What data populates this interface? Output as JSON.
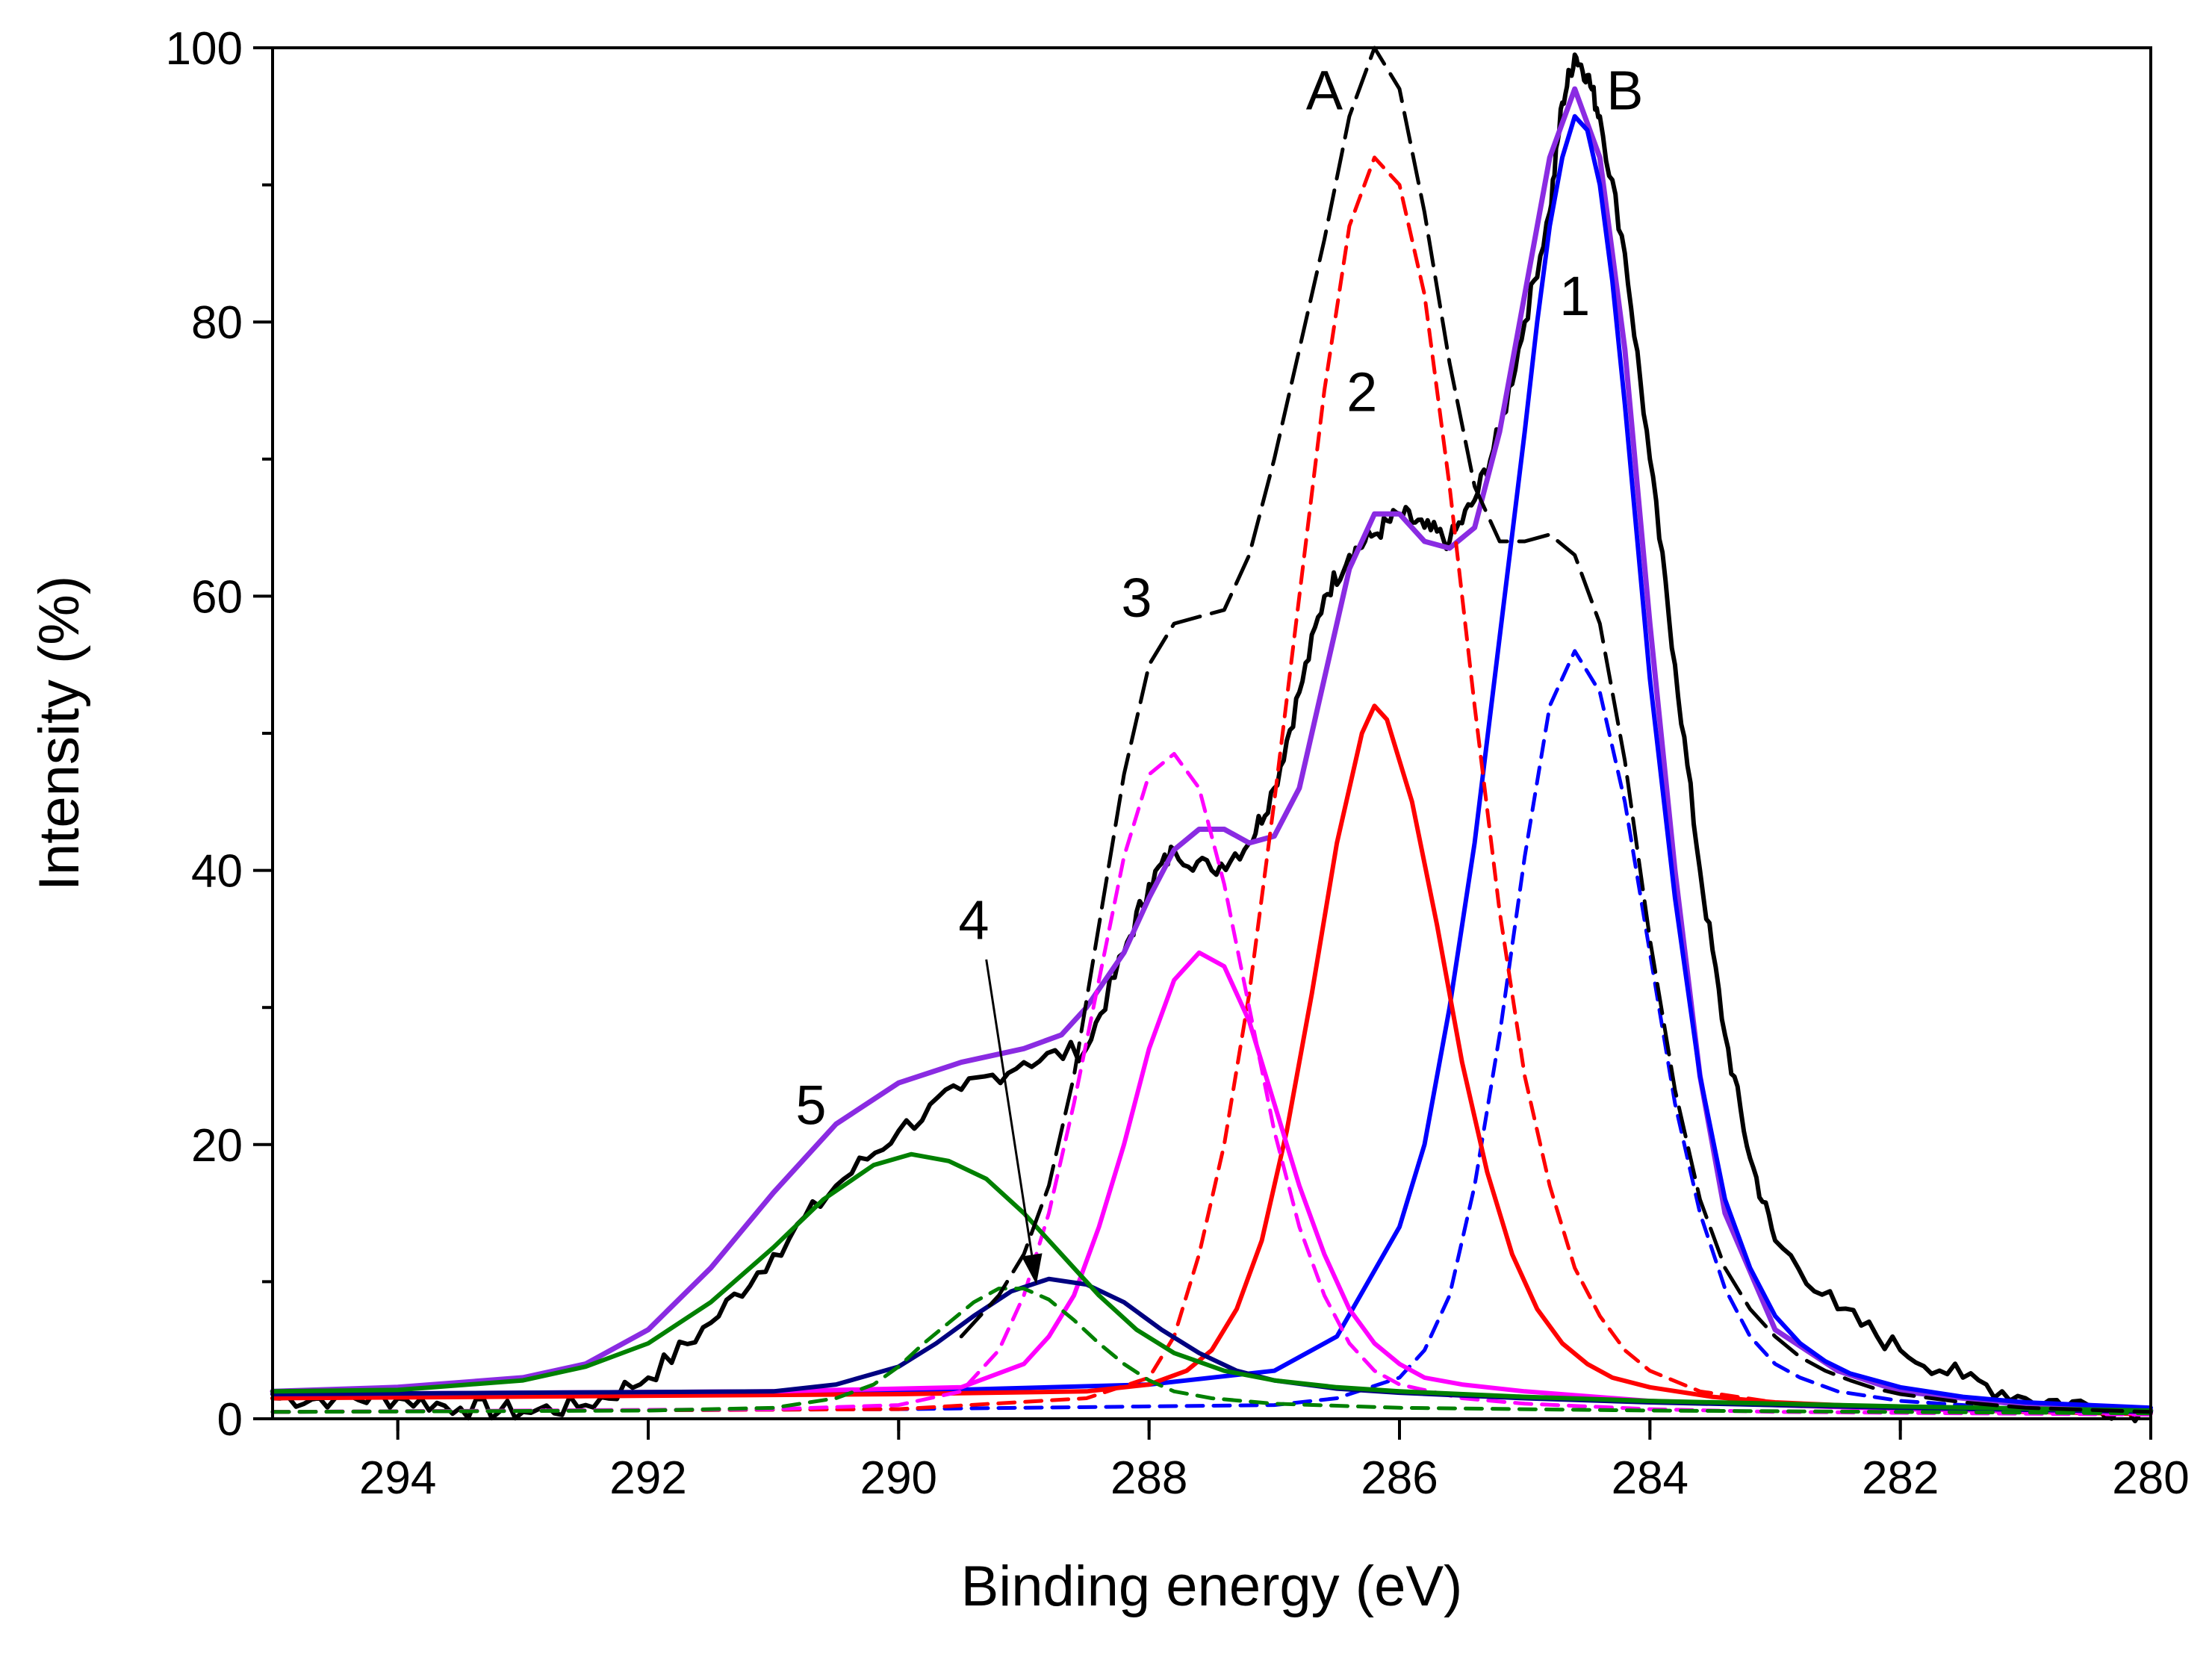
{
  "chart_data": {
    "type": "line",
    "title": "",
    "xlabel": "Binding energy (eV)",
    "ylabel": "Intensity (%)",
    "xlim": [
      295,
      280
    ],
    "ylim": [
      0,
      100
    ],
    "x_reversed": true,
    "grid": false,
    "legend": "none",
    "x_ticks": [
      294,
      292,
      290,
      288,
      286,
      284,
      282,
      280
    ],
    "x_tick_labels": [
      "294",
      "292",
      "290",
      "288",
      "286",
      "284",
      "282",
      "280"
    ],
    "y_ticks": [
      0,
      20,
      40,
      60,
      80,
      100
    ],
    "y_tick_labels": [
      "0",
      "20",
      "40",
      "60",
      "80",
      "100"
    ],
    "annotations": [
      {
        "text": "A",
        "x": 286.6,
        "y": 95.5
      },
      {
        "text": "B",
        "x": 284.2,
        "y": 95.5
      },
      {
        "text": "1",
        "x": 284.6,
        "y": 80.5
      },
      {
        "text": "2",
        "x": 286.3,
        "y": 73.5
      },
      {
        "text": "3",
        "x": 288.1,
        "y": 58.5
      },
      {
        "text": "4",
        "x": 289.4,
        "y": 35.0
      },
      {
        "text": "5",
        "x": 290.7,
        "y": 21.5
      }
    ],
    "arrow": {
      "from": [
        289.3,
        33.5
      ],
      "to": [
        288.9,
        9.8
      ],
      "color": "#000000"
    },
    "series": [
      {
        "color": "#000000",
        "style": "solid",
        "width": 6,
        "noisy": true,
        "x": [
          295,
          294.5,
          294,
          293.5,
          293,
          292.5,
          292,
          291.5,
          291,
          290.5,
          290,
          289.5,
          289,
          288.5,
          288.2,
          288,
          287.8,
          287.5,
          287.2,
          287,
          286.8,
          286.6,
          286.4,
          286.2,
          286,
          285.8,
          285.6,
          285.4,
          285.2,
          285,
          284.8,
          284.7,
          284.6,
          284.5,
          284.4,
          284.2,
          284,
          283.8,
          283.6,
          283.4,
          283.2,
          283,
          282.5,
          282,
          281.5,
          281,
          280.5,
          280
        ],
        "y": [
          1.5,
          1.5,
          1.5,
          0.8,
          0.5,
          1,
          3,
          7,
          12,
          17,
          21,
          24,
          26,
          27,
          34,
          39,
          41.5,
          40,
          42,
          46,
          53,
          60,
          63,
          64.5,
          66,
          65,
          64,
          67,
          72,
          80,
          88,
          96,
          99.5,
          98,
          95,
          85,
          70,
          55,
          40,
          28,
          19,
          13,
          8,
          5,
          3,
          1.5,
          1,
          0.5
        ]
      },
      {
        "color": "#8a2be2",
        "style": "solid",
        "width": 7,
        "x": [
          295,
          294,
          293,
          292.5,
          292,
          291.5,
          291,
          290.5,
          290,
          289.5,
          289,
          288.7,
          288.5,
          288.2,
          288,
          287.8,
          287.6,
          287.4,
          287.2,
          287,
          286.8,
          286.6,
          286.4,
          286.2,
          286,
          285.8,
          285.6,
          285.4,
          285.2,
          285,
          284.8,
          284.6,
          284.4,
          284.2,
          284,
          283.8,
          283.6,
          283.4,
          283,
          282.5,
          282,
          281,
          280
        ],
        "y": [
          2,
          2.3,
          3,
          4,
          6.5,
          11,
          16.5,
          21.5,
          24.5,
          26,
          27,
          28,
          30,
          34,
          38,
          41.5,
          43,
          43,
          42,
          42.5,
          46,
          54,
          62,
          66,
          66,
          64,
          63.5,
          65,
          72,
          82,
          92,
          97,
          92,
          78,
          58,
          40,
          25,
          15,
          6.5,
          3.5,
          2,
          1,
          0.6
        ]
      },
      {
        "color": "#0000ff",
        "style": "solid",
        "width": 6,
        "x": [
          295,
          290,
          288,
          287,
          286.5,
          286,
          285.8,
          285.6,
          285.4,
          285.2,
          285,
          284.9,
          284.8,
          284.7,
          284.6,
          284.5,
          284.4,
          284.3,
          284.2,
          284.1,
          284,
          283.8,
          283.6,
          283.4,
          283.2,
          283,
          282.8,
          282.6,
          282.4,
          282,
          281.5,
          281,
          280
        ],
        "y": [
          1.8,
          2,
          2.5,
          3.5,
          6,
          14,
          20,
          30,
          42,
          57,
          72,
          80,
          87,
          92,
          95,
          94,
          90,
          83,
          74,
          64,
          54,
          38,
          25,
          16,
          11,
          7.5,
          5.5,
          4.2,
          3.3,
          2.3,
          1.6,
          1.2,
          0.8
        ]
      },
      {
        "color": "#0000ff",
        "style": "dashed",
        "width": 5,
        "x": [
          295,
          290,
          287,
          286.5,
          286,
          285.8,
          285.6,
          285.4,
          285.2,
          285,
          284.8,
          284.6,
          284.4,
          284.2,
          284,
          283.8,
          283.6,
          283.4,
          283.2,
          283,
          282.8,
          282.5,
          282,
          281,
          280
        ],
        "y": [
          0.5,
          0.7,
          1,
          1.5,
          3,
          5,
          9,
          17,
          28,
          41,
          52,
          56,
          53,
          45,
          34,
          23,
          15,
          9.5,
          6,
          4,
          3,
          2,
          1.3,
          0.7,
          0.4
        ]
      },
      {
        "color": "#ff0000",
        "style": "solid",
        "width": 6,
        "x": [
          295,
          290,
          288.5,
          288,
          287.7,
          287.5,
          287.3,
          287.1,
          286.9,
          286.7,
          286.5,
          286.3,
          286.2,
          286.1,
          285.9,
          285.7,
          285.5,
          285.3,
          285.1,
          284.9,
          284.7,
          284.5,
          284.3,
          284,
          283.5,
          283,
          282,
          281,
          280
        ],
        "y": [
          1.5,
          1.8,
          2,
          2.5,
          3.5,
          5,
          8,
          13,
          21,
          31,
          42,
          50,
          52,
          51,
          45,
          36,
          26,
          18,
          12,
          8,
          5.5,
          4,
          3,
          2.3,
          1.6,
          1.2,
          0.8,
          0.5,
          0.4
        ]
      },
      {
        "color": "#ff0000",
        "style": "dashed",
        "width": 5,
        "x": [
          295,
          290,
          288.5,
          288,
          287.8,
          287.6,
          287.4,
          287.2,
          287,
          286.8,
          286.6,
          286.4,
          286.2,
          286,
          285.8,
          285.6,
          285.4,
          285.2,
          285,
          284.8,
          284.6,
          284.4,
          284.2,
          284,
          283.6,
          283,
          282,
          281,
          280
        ],
        "y": [
          0.5,
          0.7,
          1.5,
          3,
          6,
          12,
          20,
          31,
          45,
          60,
          75,
          87,
          92,
          90,
          82,
          68,
          52,
          37,
          25,
          17,
          11,
          7.5,
          5,
          3.5,
          2,
          1.2,
          0.8,
          0.5,
          0.3
        ]
      },
      {
        "color": "#ff00ff",
        "style": "solid",
        "width": 6,
        "x": [
          295,
          291,
          289.5,
          289,
          288.8,
          288.6,
          288.4,
          288.2,
          288,
          287.8,
          287.6,
          287.4,
          287.2,
          287,
          286.8,
          286.6,
          286.4,
          286.2,
          286,
          285.8,
          285.5,
          285,
          284,
          283,
          282,
          280
        ],
        "y": [
          1.8,
          2,
          2.3,
          4,
          6,
          9,
          14,
          20,
          27,
          32,
          34,
          33,
          29,
          23,
          17,
          12,
          8,
          5.5,
          4,
          3,
          2.5,
          2,
          1.3,
          1,
          0.7,
          0.4
        ]
      },
      {
        "color": "#ff00ff",
        "style": "dashed",
        "width": 5,
        "x": [
          295,
          291,
          290,
          289.5,
          289.2,
          289,
          288.8,
          288.6,
          288.4,
          288.2,
          288,
          287.8,
          287.6,
          287.4,
          287.2,
          287,
          286.8,
          286.6,
          286.4,
          286.2,
          286,
          285.5,
          285,
          284,
          283,
          280
        ],
        "y": [
          0.5,
          0.7,
          1,
          2,
          5,
          9,
          15,
          23,
          32,
          41,
          47,
          48.5,
          46,
          39,
          30,
          21,
          14,
          9,
          5.5,
          3.5,
          2.5,
          1.5,
          1.1,
          0.7,
          0.5,
          0.3
        ]
      },
      {
        "color": "#000080",
        "style": "solid",
        "width": 6,
        "x": [
          295,
          291,
          290.5,
          290,
          289.7,
          289.4,
          289.1,
          288.8,
          288.5,
          288.2,
          287.9,
          287.6,
          287.3,
          287,
          286.5,
          286,
          285,
          284,
          282,
          280
        ],
        "y": [
          1.8,
          2,
          2.5,
          3.8,
          5.5,
          7.5,
          9.3,
          10.2,
          9.8,
          8.5,
          6.5,
          4.8,
          3.5,
          2.8,
          2.2,
          1.9,
          1.5,
          1.2,
          0.8,
          0.5
        ]
      },
      {
        "color": "#008000",
        "style": "solid",
        "width": 6,
        "x": [
          295,
          294,
          293,
          292.5,
          292,
          291.5,
          291,
          290.6,
          290.2,
          289.9,
          289.6,
          289.3,
          289,
          288.7,
          288.4,
          288.1,
          287.8,
          287.4,
          287,
          286.5,
          286,
          285,
          284,
          282,
          280
        ],
        "y": [
          2,
          2.1,
          2.8,
          3.8,
          5.5,
          8.5,
          12.5,
          16,
          18.5,
          19.3,
          18.8,
          17.5,
          15,
          12,
          9,
          6.5,
          4.8,
          3.5,
          2.8,
          2.3,
          2,
          1.6,
          1.3,
          0.9,
          0.6
        ]
      },
      {
        "color": "#008000",
        "style": "dashed",
        "width": 5,
        "x": [
          295,
          292,
          291,
          290.5,
          290.2,
          290,
          289.8,
          289.6,
          289.4,
          289.2,
          289,
          288.8,
          288.6,
          288.4,
          288.2,
          288,
          287.8,
          287.5,
          287,
          286,
          284,
          282,
          280
        ],
        "y": [
          0.5,
          0.6,
          0.8,
          1.5,
          2.5,
          3.8,
          5.5,
          7,
          8.5,
          9.5,
          9.5,
          8.7,
          7.2,
          5.5,
          4,
          2.8,
          2,
          1.5,
          1.1,
          0.8,
          0.6,
          0.5,
          0.4
        ]
      },
      {
        "color": "#000000",
        "style": "longdash",
        "width": 5,
        "x": [
          289.5,
          289.2,
          289,
          288.8,
          288.6,
          288.4,
          288.2,
          288,
          287.8,
          287.6,
          287.4,
          287.2,
          287,
          286.8,
          286.6,
          286.4,
          286.2,
          286,
          285.8,
          285.6,
          285.4,
          285.2,
          285,
          284.8,
          284.6,
          284.4,
          284.2,
          284,
          283.8,
          283.6,
          283.4,
          283.2,
          283,
          282.8,
          282.6,
          282.4,
          282.2,
          282,
          281.5,
          281,
          280
        ],
        "y": [
          6,
          9,
          12,
          17,
          25,
          36,
          47,
          55,
          58,
          58.5,
          59,
          63,
          70,
          78,
          86,
          95,
          100,
          97,
          88,
          77,
          68,
          64,
          64,
          64.5,
          63,
          58,
          48,
          35,
          24,
          16,
          11,
          8,
          6,
          4.5,
          3.5,
          2.8,
          2.2,
          1.8,
          1.2,
          0.8,
          0.5
        ]
      }
    ]
  }
}
